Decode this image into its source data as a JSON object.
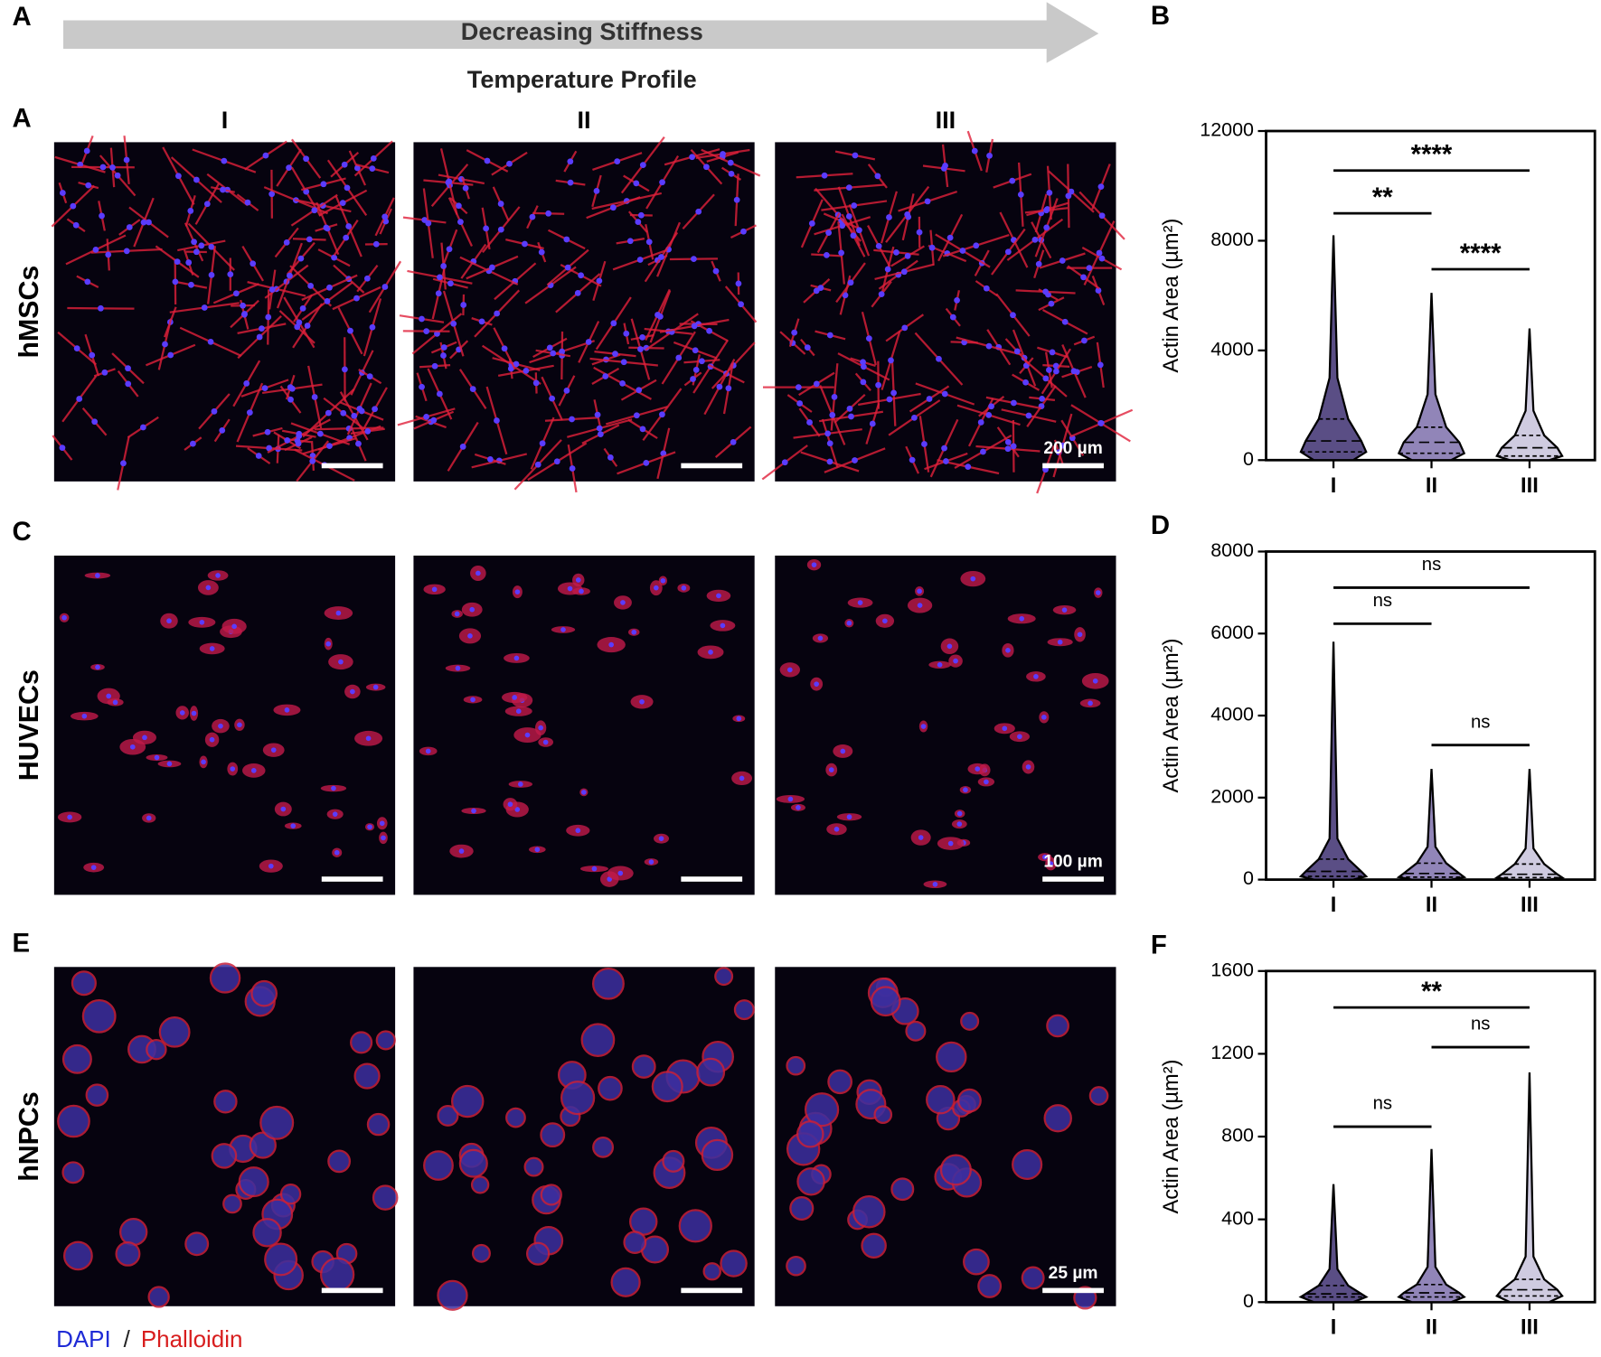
{
  "header": {
    "panel": "A",
    "arrow": "Decreasing Stiffness",
    "subtitle": "Temperature Profile",
    "columns": [
      "I",
      "II",
      "III"
    ]
  },
  "rows": [
    {
      "panel": "A",
      "label": "hMSCs",
      "scale": "200 µm"
    },
    {
      "panel": "C",
      "label": "HUVECs",
      "scale": "100 µm"
    },
    {
      "panel": "E",
      "label": "hNPCs",
      "scale": "25 µm"
    }
  ],
  "legend": {
    "dapi": "DAPI",
    "sep": "/",
    "phalloidin": "Phalloidin"
  },
  "chart_data": [
    {
      "type": "violin",
      "panel": "B",
      "ylabel": "Actin Area (µm²)",
      "categories": [
        "I",
        "II",
        "III"
      ],
      "ylim": [
        0,
        12000
      ],
      "yticks": [
        0,
        4000,
        8000,
        12000
      ],
      "violins": [
        {
          "color": "#5a4e85",
          "max": 8200,
          "q3": 1500,
          "median": 700,
          "q1": 300
        },
        {
          "color": "#9185b8",
          "max": 6100,
          "q3": 1200,
          "median": 650,
          "q1": 250
        },
        {
          "color": "#cfcbe0",
          "max": 4800,
          "q3": 900,
          "median": 450,
          "q1": 150
        }
      ],
      "annotations": [
        "****",
        "**",
        "****"
      ]
    },
    {
      "type": "violin",
      "panel": "D",
      "ylabel": "Actin Area (µm²)",
      "categories": [
        "I",
        "II",
        "III"
      ],
      "ylim": [
        0,
        8000
      ],
      "yticks": [
        0,
        2000,
        4000,
        6000,
        8000
      ],
      "violins": [
        {
          "color": "#5a4e85",
          "max": 5800,
          "q3": 500,
          "median": 200,
          "q1": 80
        },
        {
          "color": "#9185b8",
          "max": 2700,
          "q3": 400,
          "median": 150,
          "q1": 60
        },
        {
          "color": "#cfcbe0",
          "max": 2700,
          "q3": 380,
          "median": 130,
          "q1": 50
        }
      ],
      "annotations": [
        "ns",
        "ns",
        "ns"
      ]
    },
    {
      "type": "violin",
      "panel": "F",
      "ylabel": "Actin Area (µm²)",
      "categories": [
        "I",
        "II",
        "III"
      ],
      "ylim": [
        0,
        1600
      ],
      "yticks": [
        0,
        400,
        800,
        1200,
        1600
      ],
      "violins": [
        {
          "color": "#5a4e85",
          "max": 570,
          "q3": 80,
          "median": 40,
          "q1": 25
        },
        {
          "color": "#9185b8",
          "max": 740,
          "q3": 85,
          "median": 45,
          "q1": 25
        },
        {
          "color": "#cfcbe0",
          "max": 1110,
          "q3": 110,
          "median": 60,
          "q1": 30
        }
      ],
      "annotations": [
        "**",
        "ns",
        "ns"
      ]
    }
  ]
}
